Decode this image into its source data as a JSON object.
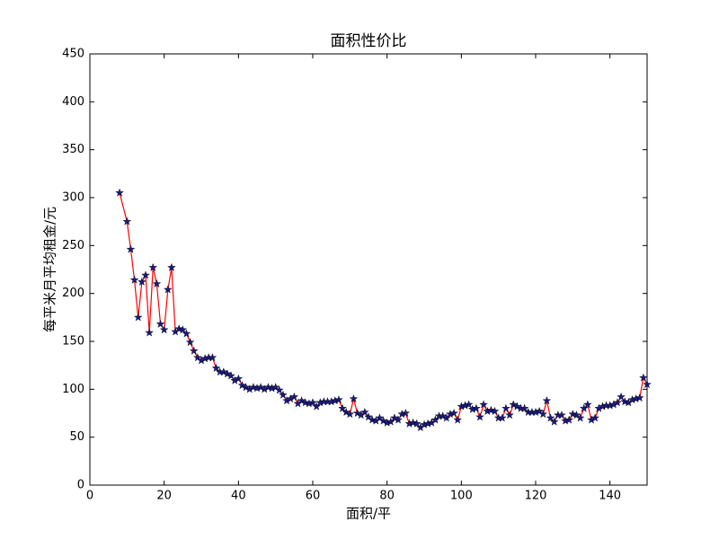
{
  "chart_data": {
    "type": "line",
    "title": "面积性价比",
    "x_label": "面积/平",
    "y_label": "每平米月平均租金/元",
    "x": [
      8,
      10,
      11,
      12,
      13,
      14,
      15,
      16,
      17,
      18,
      19,
      20,
      21,
      22,
      23,
      24,
      25,
      26,
      27,
      28,
      29,
      30,
      31,
      32,
      33,
      34,
      35,
      36,
      37,
      38,
      39,
      40,
      41,
      42,
      43,
      44,
      45,
      46,
      47,
      48,
      49,
      50,
      51,
      52,
      53,
      54,
      55,
      56,
      57,
      58,
      59,
      60,
      61,
      62,
      63,
      64,
      65,
      66,
      67,
      68,
      69,
      70,
      71,
      72,
      73,
      74,
      75,
      76,
      77,
      78,
      79,
      80,
      81,
      82,
      83,
      84,
      85,
      86,
      87,
      88,
      89,
      90,
      91,
      92,
      93,
      94,
      95,
      96,
      97,
      98,
      99,
      100,
      101,
      102,
      103,
      104,
      105,
      106,
      107,
      108,
      109,
      110,
      111,
      112,
      113,
      114,
      115,
      116,
      117,
      118,
      119,
      120,
      121,
      122,
      123,
      124,
      125,
      126,
      127,
      128,
      129,
      130,
      131,
      132,
      133,
      134,
      135,
      136,
      137,
      138,
      139,
      140,
      141,
      142,
      143,
      144,
      145,
      146,
      147,
      148,
      149,
      150
    ],
    "series": [
      {
        "line_color": "#ff0000",
        "marker_color": "#1a1a80",
        "marker": "star",
        "values": [
          305,
          275,
          246,
          214,
          175,
          212,
          219,
          159,
          227,
          210,
          168,
          162,
          204,
          227,
          160,
          163,
          162,
          158,
          149,
          140,
          133,
          130,
          132,
          133,
          133,
          122,
          118,
          118,
          116,
          114,
          109,
          111,
          104,
          102,
          100,
          102,
          101,
          102,
          100,
          102,
          101,
          102,
          99,
          94,
          88,
          90,
          92,
          85,
          88,
          86,
          85,
          86,
          82,
          86,
          87,
          87,
          87,
          88,
          89,
          80,
          76,
          74,
          90,
          75,
          73,
          76,
          71,
          68,
          67,
          70,
          67,
          65,
          66,
          70,
          68,
          74,
          75,
          64,
          65,
          64,
          60,
          63,
          64,
          65,
          68,
          72,
          72,
          70,
          74,
          75,
          68,
          82,
          83,
          84,
          79,
          80,
          71,
          84,
          77,
          78,
          77,
          70,
          70,
          80,
          73,
          84,
          82,
          80,
          80,
          76,
          76,
          76,
          77,
          74,
          88,
          70,
          66,
          73,
          73,
          67,
          68,
          74,
          73,
          70,
          80,
          84,
          68,
          70,
          80,
          82,
          83,
          83,
          84,
          86,
          92,
          87,
          86,
          89,
          90,
          91,
          112,
          105
        ]
      }
    ],
    "xlim": [
      0,
      150
    ],
    "xticks": [
      0,
      20,
      40,
      60,
      80,
      100,
      120,
      140
    ],
    "ylim": [
      0,
      450
    ],
    "yticks": [
      0,
      50,
      100,
      150,
      200,
      250,
      300,
      350,
      400,
      450
    ]
  }
}
